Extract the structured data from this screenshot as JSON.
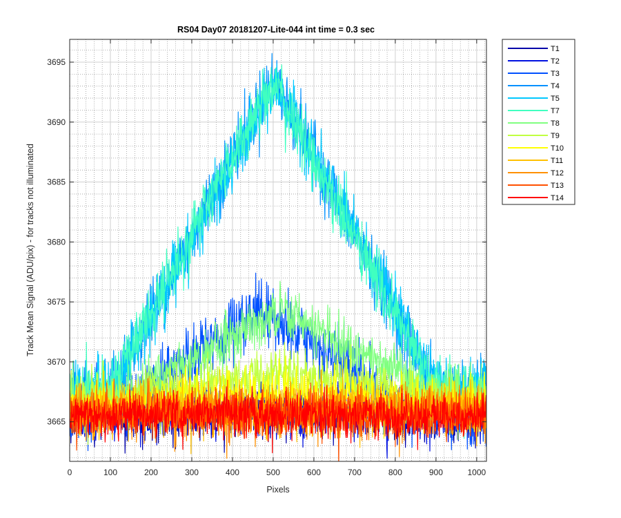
{
  "chart_data": {
    "type": "line",
    "title": "RS04 Day07 20181207-Lite-044 int time = 0.3 sec",
    "xlabel": "Pixels",
    "ylabel": "Track Mean Signal (ADU/pix) - for tracks not illuminated",
    "xlim": [
      0,
      1024
    ],
    "ylim": [
      3661.7,
      3696.9
    ],
    "x_ticks": [
      0,
      100,
      200,
      300,
      400,
      500,
      600,
      700,
      800,
      900,
      1000
    ],
    "y_ticks": [
      3665,
      3670,
      3675,
      3680,
      3685,
      3690,
      3695
    ],
    "grid": true,
    "minor_grid": true,
    "legend_position": "outside-right-top",
    "series": [
      {
        "name": "T1",
        "color": "#0000a8",
        "profile": "flat",
        "base": 3665.6,
        "noise": 1.0,
        "peak": 0
      },
      {
        "name": "T2",
        "color": "#0010e0",
        "profile": "flat",
        "base": 3665.7,
        "noise": 1.1,
        "peak": 0
      },
      {
        "name": "T3",
        "color": "#0050ff",
        "profile": "peak",
        "base": 3666.0,
        "noise": 1.3,
        "peak": 8.2,
        "center": 470,
        "width": 360
      },
      {
        "name": "T4",
        "color": "#0090ff",
        "profile": "peak",
        "base": 3667.5,
        "noise": 1.3,
        "peak": 26.2,
        "center": 500,
        "width": 400
      },
      {
        "name": "T5",
        "color": "#00c8ff",
        "profile": "peak",
        "base": 3667.8,
        "noise": 1.2,
        "peak": 25.3,
        "center": 505,
        "width": 400
      },
      {
        "name": "T7",
        "color": "#40ffc0",
        "profile": "peak",
        "base": 3667.6,
        "noise": 1.2,
        "peak": 25.8,
        "center": 498,
        "width": 400
      },
      {
        "name": "T8",
        "color": "#80ff80",
        "profile": "peak",
        "base": 3667.3,
        "noise": 1.0,
        "peak": 7.0,
        "center": 520,
        "width": 380
      },
      {
        "name": "T9",
        "color": "#c0ff40",
        "profile": "peak",
        "base": 3666.6,
        "noise": 1.0,
        "peak": 2.6,
        "center": 520,
        "width": 420
      },
      {
        "name": "T10",
        "color": "#ffff00",
        "profile": "peak",
        "base": 3666.3,
        "noise": 1.0,
        "peak": 1.2,
        "center": 520,
        "width": 450
      },
      {
        "name": "T11",
        "color": "#ffc000",
        "profile": "flat",
        "base": 3666.0,
        "noise": 1.0,
        "peak": 0
      },
      {
        "name": "T12",
        "color": "#ff9000",
        "profile": "flat",
        "base": 3665.8,
        "noise": 1.0,
        "peak": 0
      },
      {
        "name": "T13",
        "color": "#ff5000",
        "profile": "flat",
        "base": 3665.7,
        "noise": 0.95,
        "peak": 0
      },
      {
        "name": "T14",
        "color": "#ff0000",
        "profile": "flat",
        "base": 3665.6,
        "noise": 0.9,
        "peak": 0
      }
    ]
  }
}
